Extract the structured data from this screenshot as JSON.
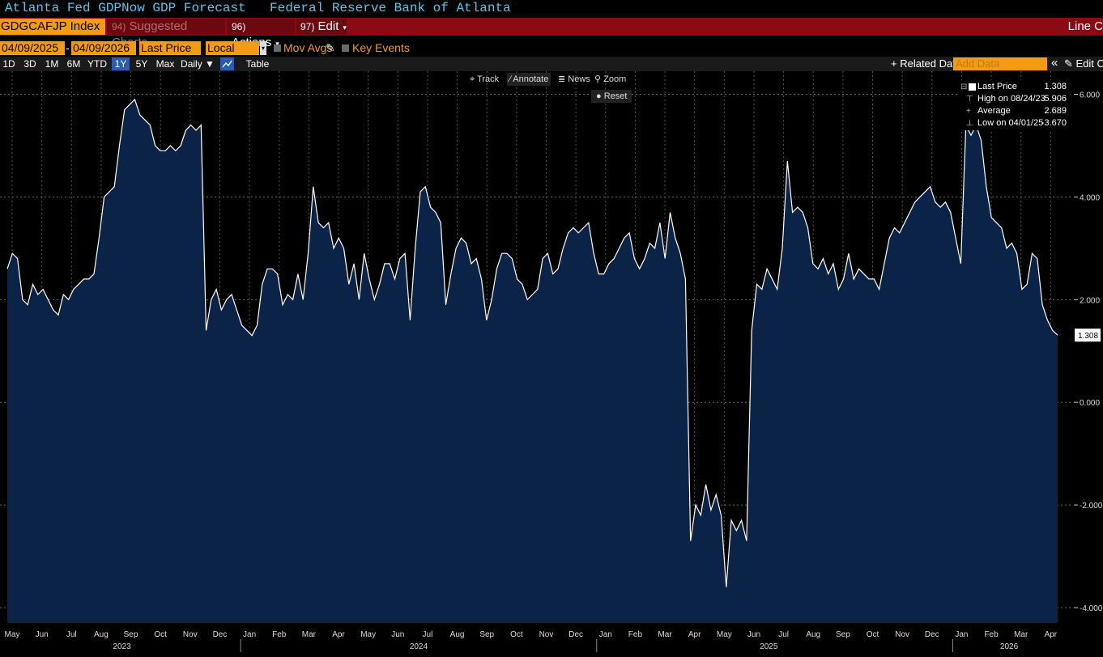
{
  "header": {
    "title_left": "Atlanta Fed GDPNow GDP Forecast",
    "title_right": "Federal Reserve Bank of Atlanta"
  },
  "actionbar": {
    "ticker": "GDGCAFJP Index",
    "suggested_num": "94)",
    "suggested_label": "Suggested Charts",
    "actions_num": "96)",
    "actions_label": "Actions",
    "edit_num": "97)",
    "edit_label": "Edit",
    "right_label": "Line C"
  },
  "controls": {
    "start_date": "04/09/2025",
    "end_date": "04/09/2026",
    "field": "Last Price",
    "currency": "Local CCY",
    "mov_avgs": "Mov Avgs",
    "key_events": "Key Events"
  },
  "ranges": {
    "items": [
      "1D",
      "3D",
      "1M",
      "6M",
      "YTD",
      "1Y",
      "5Y",
      "Max"
    ],
    "active": "1Y",
    "frequency": "Daily",
    "table": "Table",
    "related": "+ Related Data",
    "add_data": "Add Data",
    "edit_chart": "Edit Ch"
  },
  "toolbar": {
    "track": "Track",
    "annotate": "Annotate",
    "news": "News",
    "zoom": "Zoom",
    "reset": "Reset"
  },
  "legend": {
    "last_price_label": "Last Price",
    "last_price_value": "1.308",
    "high_label": "High on 08/24/23",
    "high_value": "5.906",
    "average_label": "Average",
    "average_value": "2.689",
    "low_label": "Low on 04/01/25",
    "low_value": "-3.670"
  },
  "colors": {
    "accent": "#f39c12",
    "bar_red": "#8b0a14",
    "fill": "#0b2346",
    "line": "#ffffff",
    "title": "#53c8f0"
  },
  "chart_data": {
    "type": "area",
    "ylim": [
      -4.3,
      6.45
    ],
    "yticks": [
      "6.000",
      "4.000",
      "2.000",
      "0.000",
      "-2.000",
      "-4.000"
    ],
    "ytick_values": [
      6,
      4,
      2,
      0,
      -2,
      -4
    ],
    "last_value_label": "1.308",
    "month_labels": [
      "May",
      "Jun",
      "Jul",
      "Aug",
      "Sep",
      "Oct",
      "Nov",
      "Dec",
      "Jan",
      "Feb",
      "Mar",
      "Apr",
      "May",
      "Jun",
      "Jul",
      "Aug",
      "Sep",
      "Oct",
      "Nov",
      "Dec",
      "Jan",
      "Feb",
      "Mar",
      "Apr",
      "May",
      "Jun",
      "Jul",
      "Aug",
      "Sep",
      "Oct",
      "Nov",
      "Dec",
      "Jan",
      "Feb",
      "Mar",
      "Apr"
    ],
    "year_labels": [
      "2023",
      "2024",
      "2025",
      "2026"
    ],
    "series": [
      {
        "values": [
          2.6,
          2.9,
          2.8,
          2.0,
          1.9,
          2.3,
          2.1,
          2.2,
          2.0,
          1.8,
          1.7,
          2.1,
          2.0,
          2.2,
          2.3,
          2.4,
          2.4,
          2.5,
          3.2,
          4.0,
          4.1,
          4.2,
          5.0,
          5.7,
          5.8,
          5.9,
          5.6,
          5.5,
          5.4,
          5.0,
          4.9,
          4.9,
          5.0,
          4.9,
          5.0,
          5.3,
          5.4,
          5.3,
          5.4,
          1.4,
          2.0,
          2.2,
          1.8,
          2.0,
          2.1,
          1.8,
          1.5,
          1.4,
          1.3,
          1.5,
          2.3,
          2.6,
          2.6,
          2.5,
          1.9,
          2.1,
          2.0,
          2.5,
          2.0,
          2.9,
          4.2,
          3.5,
          3.4,
          3.5,
          3.0,
          3.2,
          3.0,
          2.3,
          2.7,
          2.0,
          2.9,
          2.4,
          2.0,
          2.3,
          2.7,
          2.7,
          2.4,
          2.8,
          2.9,
          1.6,
          3.0,
          4.1,
          4.2,
          3.8,
          3.7,
          3.5,
          1.9,
          2.5,
          3.0,
          3.2,
          3.1,
          2.7,
          2.8,
          2.4,
          1.6,
          2.0,
          2.6,
          2.9,
          2.9,
          2.8,
          2.4,
          2.3,
          2.0,
          2.1,
          2.2,
          2.8,
          2.9,
          2.5,
          2.6,
          3.0,
          3.3,
          3.4,
          3.3,
          3.4,
          3.5,
          2.9,
          2.5,
          2.5,
          2.7,
          2.8,
          3.0,
          3.2,
          3.3,
          2.8,
          2.6,
          2.8,
          3.1,
          3.0,
          3.5,
          2.8,
          3.7,
          3.2,
          2.9,
          2.4,
          -2.7,
          -2.0,
          -2.2,
          -1.6,
          -2.1,
          -1.8,
          -2.2,
          -3.6,
          -2.3,
          -2.5,
          -2.3,
          -2.7,
          1.4,
          2.3,
          2.2,
          2.6,
          2.4,
          2.2,
          3.0,
          4.7,
          3.7,
          3.8,
          3.7,
          3.4,
          2.7,
          2.6,
          2.8,
          2.5,
          2.7,
          2.2,
          2.4,
          2.9,
          2.4,
          2.6,
          2.5,
          2.4,
          2.4,
          2.2,
          2.7,
          3.2,
          3.4,
          3.3,
          3.5,
          3.7,
          3.9,
          4.0,
          4.1,
          4.2,
          3.9,
          3.8,
          3.9,
          3.7,
          3.2,
          2.7,
          5.4,
          5.2,
          5.4,
          5.1,
          4.2,
          3.6,
          3.5,
          3.4,
          3.0,
          3.1,
          2.9,
          2.2,
          2.3,
          2.9,
          2.8,
          1.9,
          1.6,
          1.4,
          1.308
        ]
      }
    ]
  }
}
